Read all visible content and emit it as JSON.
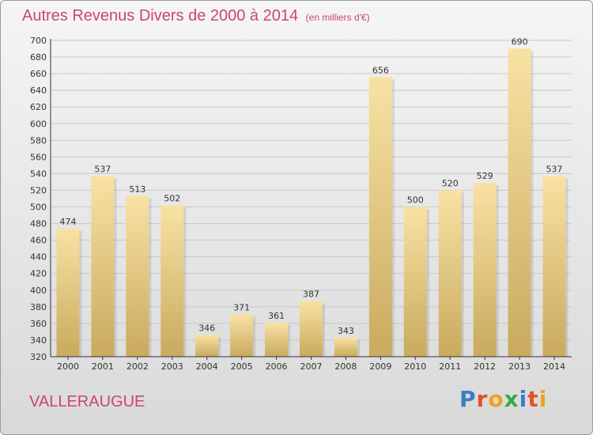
{
  "title": "Autres Revenus Divers de 2000 à 2014",
  "unit": "(en milliers d'€)",
  "commune": "VALLERAUGUE",
  "logo": {
    "text": "Proxiti",
    "colors": [
      "#3a7fc6",
      "#e2502a",
      "#f0a020",
      "#3aa847",
      "#3a7fc6",
      "#e2502a",
      "#f0a020"
    ]
  },
  "colors": {
    "bar_light": "#f8e2a3",
    "bar_dark": "#c9aa5e",
    "title": "#cc4477",
    "grid": "#c8c8c8"
  },
  "chart_data": {
    "type": "bar",
    "categories": [
      "2000",
      "2001",
      "2002",
      "2003",
      "2004",
      "2005",
      "2006",
      "2007",
      "2008",
      "2009",
      "2010",
      "2011",
      "2012",
      "2013",
      "2014"
    ],
    "values": [
      474,
      537,
      513,
      502,
      346,
      371,
      361,
      387,
      343,
      656,
      500,
      520,
      529,
      690,
      537
    ],
    "ylim": [
      320,
      700
    ],
    "yticks": [
      320,
      340,
      360,
      380,
      400,
      420,
      440,
      460,
      480,
      500,
      520,
      540,
      560,
      580,
      600,
      620,
      640,
      660,
      680,
      700
    ],
    "grid": true,
    "legend": "none"
  }
}
